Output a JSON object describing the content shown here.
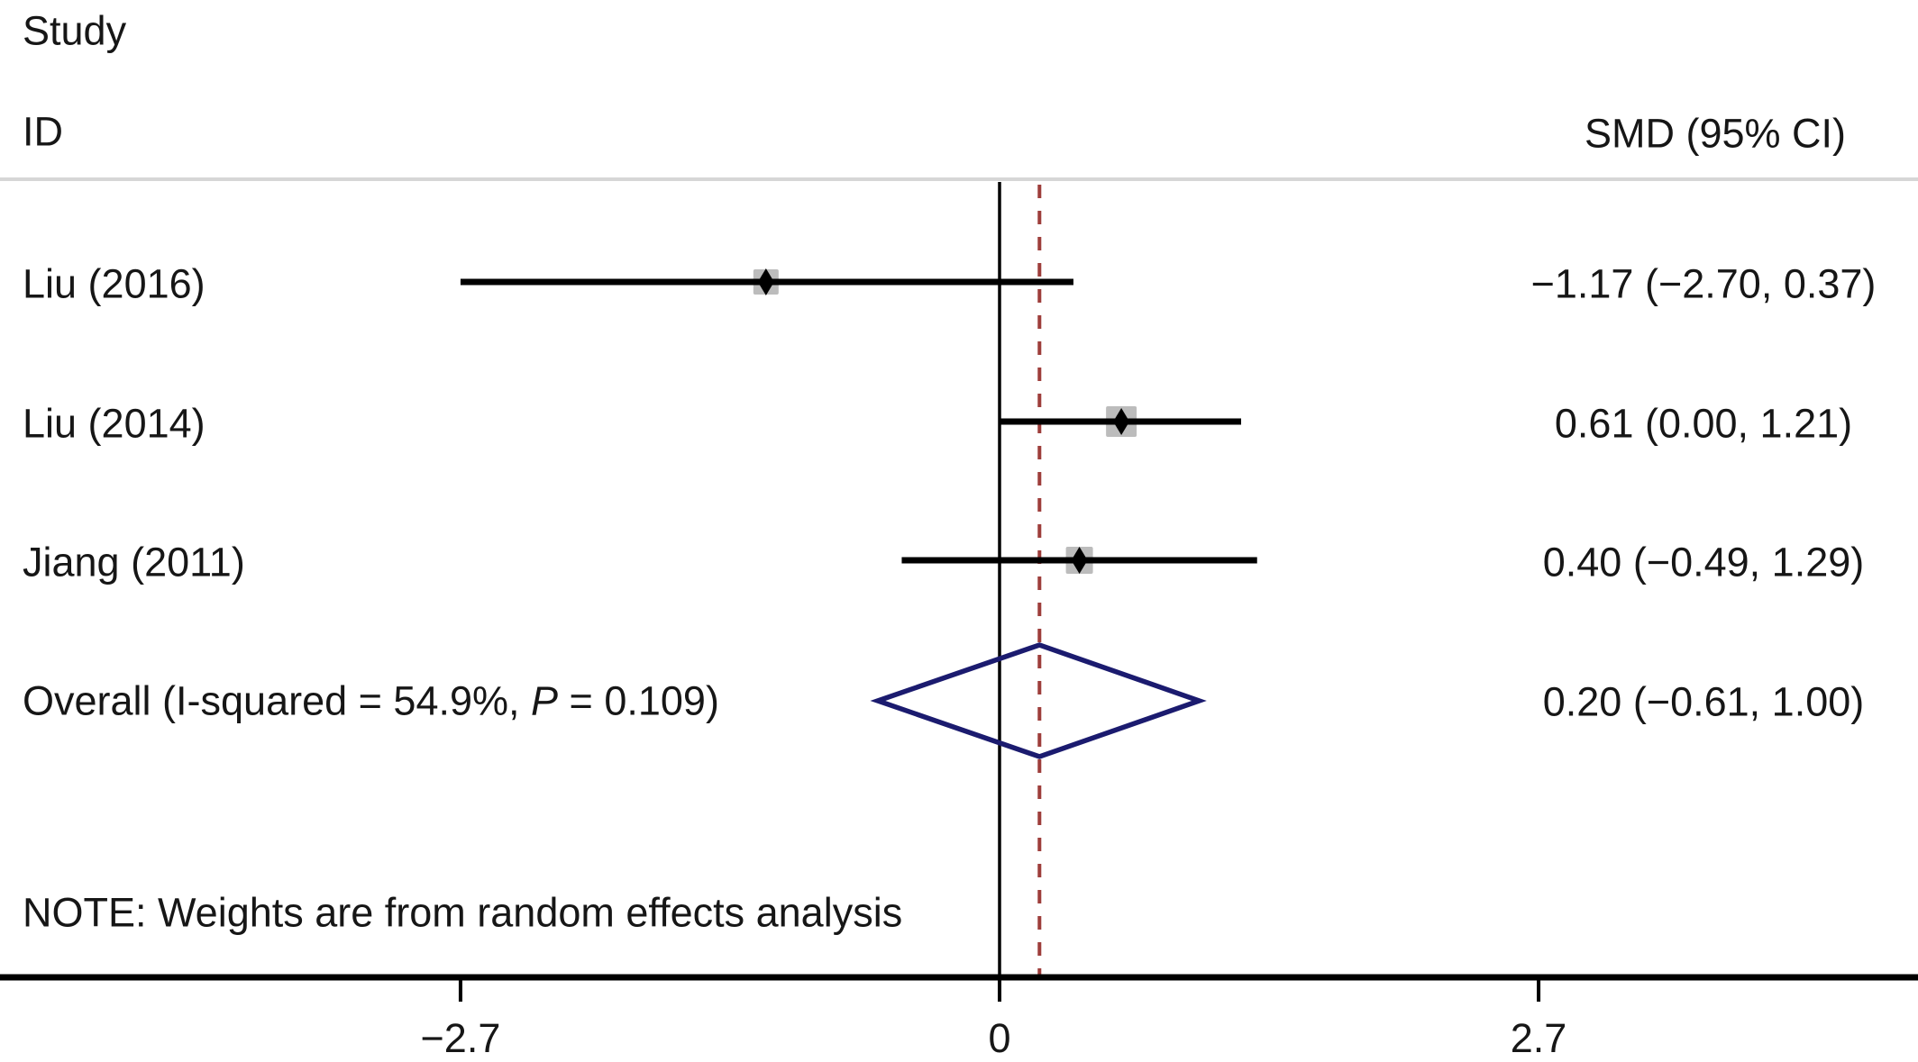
{
  "colors": {
    "text": "#161616",
    "ci_line": "#000000",
    "weight_box": "#bcbcbc",
    "point_marker": "#000000",
    "diamond_outline": "#1b1b6f",
    "null_line": "#000000",
    "overall_dash_line": "#9d3d3a",
    "axis": "#000000",
    "separator": "#d6d6d6"
  },
  "header": {
    "study": "Study",
    "id": "ID",
    "effect_col": "SMD (95% CI)"
  },
  "note": "NOTE: Weights are from random effects analysis",
  "chart_data": {
    "type": "forest",
    "effect_measure": "SMD",
    "model": "random effects",
    "x_ticks": [
      -2.7,
      0,
      2.7
    ],
    "x_tick_labels": [
      "−2.7",
      "0",
      "2.7"
    ],
    "null_value": 0,
    "studies": [
      {
        "label": "Liu (2016)",
        "smd": -1.17,
        "ci_low": -2.7,
        "ci_high": 0.37,
        "display": "−1.17 (−2.70, 0.37)",
        "weight_box_size": 28
      },
      {
        "label": "Liu (2014)",
        "smd": 0.61,
        "ci_low": 0.0,
        "ci_high": 1.21,
        "display": "0.61 (0.00, 1.21)",
        "weight_box_size": 34
      },
      {
        "label": "Jiang (2011)",
        "smd": 0.4,
        "ci_low": -0.49,
        "ci_high": 1.29,
        "display": "0.40 (−0.49, 1.29)",
        "weight_box_size": 30
      }
    ],
    "overall": {
      "label_before_p": "Overall (I-squared = 54.9%, ",
      "p_symbol": "P",
      "label_after_p": " = 0.109)",
      "i_squared": "54.9%",
      "p_value": "0.109",
      "smd": 0.2,
      "ci_low": -0.61,
      "ci_high": 1.0,
      "display": "0.20 (−0.61, 1.00)"
    }
  }
}
